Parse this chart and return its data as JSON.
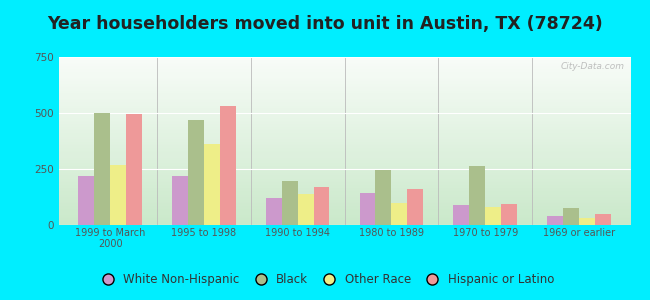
{
  "title": "Year householders moved into unit in Austin, TX (78724)",
  "categories": [
    "1999 to March\n2000",
    "1995 to 1998",
    "1990 to 1994",
    "1980 to 1989",
    "1970 to 1979",
    "1969 or earlier"
  ],
  "series": {
    "White Non-Hispanic": [
      220,
      220,
      120,
      145,
      90,
      40
    ],
    "Black": [
      500,
      470,
      195,
      245,
      265,
      75
    ],
    "Other Race": [
      270,
      360,
      140,
      100,
      80,
      30
    ],
    "Hispanic or Latino": [
      495,
      530,
      170,
      160,
      95,
      50
    ]
  },
  "colors": {
    "White Non-Hispanic": "#cc99cc",
    "Black": "#aabf8c",
    "Other Race": "#eeee88",
    "Hispanic or Latino": "#ee9999"
  },
  "ylim": [
    0,
    750
  ],
  "yticks": [
    0,
    250,
    500,
    750
  ],
  "background_outer": "#00eeff",
  "background_plot_top": "#f0f8f0",
  "background_plot_bottom": "#d8f0d8",
  "title_color": "#222222",
  "title_fontsize": 12.5,
  "bar_width": 0.17,
  "legend_fontsize": 8.5,
  "watermark": "City-Data.com"
}
